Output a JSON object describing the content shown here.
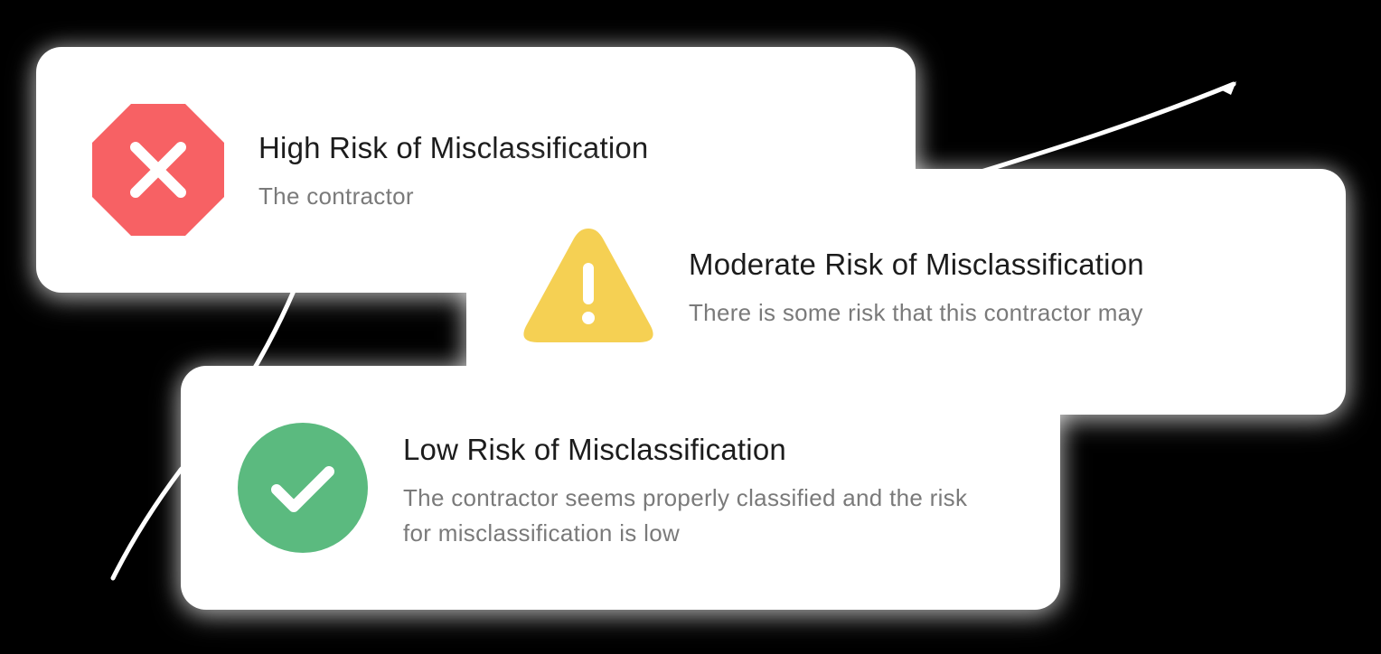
{
  "cards": {
    "high": {
      "title": "High Risk of Misclassification",
      "description": "The contractor",
      "icon": "x-octagon-icon",
      "color": "#f76164"
    },
    "moderate": {
      "title": "Moderate Risk of Misclassification",
      "description": "There is some risk that this contractor may",
      "icon": "warning-triangle-icon",
      "color": "#f5d053"
    },
    "low": {
      "title": "Low Risk of Misclassification",
      "description": "The contractor seems properly classified and the risk for misclassification is low",
      "icon": "check-circle-icon",
      "color": "#5bba7f"
    }
  }
}
